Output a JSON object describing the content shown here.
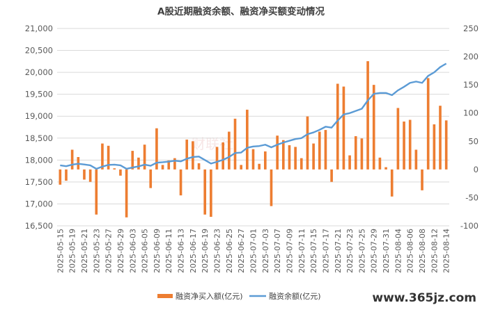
{
  "watermark": "www.365jz.com",
  "faint_watermark": "财联社",
  "colors": {
    "bar": "#ED7D31",
    "line": "#5B9BD5",
    "grid": "#D9D9D9",
    "text": "#595959",
    "title": "#404040"
  },
  "chart_data": {
    "type": "bar+line",
    "title": "A股近期融资余额、融资净买额变动情况",
    "xlabel": "",
    "ylabel_left": "",
    "ylabel_right": "",
    "ylim_left": [
      16500,
      21000
    ],
    "yticks_left": [
      "16,500",
      "17,000",
      "17,500",
      "18,000",
      "18,500",
      "19,000",
      "19,500",
      "20,000",
      "20,500",
      "21,000"
    ],
    "ylim_right": [
      -100,
      250
    ],
    "yticks_right": [
      "-100",
      "-50",
      "0",
      "50",
      "100",
      "150",
      "200",
      "250"
    ],
    "grid": true,
    "legend_position": "bottom",
    "categories": [
      "2025-05-15",
      "2025-05-16",
      "2025-05-19",
      "2025-05-20",
      "2025-05-21",
      "2025-05-22",
      "2025-05-23",
      "2025-05-26",
      "2025-05-27",
      "2025-05-28",
      "2025-05-29",
      "2025-05-30",
      "2025-06-03",
      "2025-06-04",
      "2025-06-05",
      "2025-06-06",
      "2025-06-09",
      "2025-06-10",
      "2025-06-11",
      "2025-06-12",
      "2025-06-13",
      "2025-06-16",
      "2025-06-17",
      "2025-06-18",
      "2025-06-19",
      "2025-06-20",
      "2025-06-23",
      "2025-06-24",
      "2025-06-25",
      "2025-06-26",
      "2025-06-27",
      "2025-06-30",
      "2025-07-01",
      "2025-07-02",
      "2025-07-03",
      "2025-07-04",
      "2025-07-07",
      "2025-07-08",
      "2025-07-09",
      "2025-07-10",
      "2025-07-11",
      "2025-07-14",
      "2025-07-15",
      "2025-07-16",
      "2025-07-17",
      "2025-07-18",
      "2025-07-21",
      "2025-07-22",
      "2025-07-23",
      "2025-07-24",
      "2025-07-25",
      "2025-07-28",
      "2025-07-29",
      "2025-07-30",
      "2025-07-31",
      "2025-08-01",
      "2025-08-04",
      "2025-08-05",
      "2025-08-06",
      "2025-08-07",
      "2025-08-08",
      "2025-08-11",
      "2025-08-12",
      "2025-08-13",
      "2025-08-14"
    ],
    "xtick_labels": [
      "2025-05-15",
      "2025-05-19",
      "2025-05-21",
      "2025-05-23",
      "2025-05-27",
      "2025-05-29",
      "2025-06-03",
      "2025-06-05",
      "2025-06-09",
      "2025-06-11",
      "2025-06-13",
      "2025-06-17",
      "2025-06-19",
      "2025-06-23",
      "2025-06-25",
      "2025-06-27",
      "2025-07-01",
      "2025-07-03",
      "2025-07-07",
      "2025-07-09",
      "2025-07-11",
      "2025-07-15",
      "2025-07-17",
      "2025-07-21",
      "2025-07-23",
      "2025-07-25",
      "2025-07-29",
      "2025-07-31",
      "2025-08-04",
      "2025-08-06",
      "2025-08-08",
      "2025-08-12",
      "2025-08-14"
    ],
    "series": [
      {
        "name": "融资净买入额(亿元)",
        "type": "bar",
        "axis": "right",
        "values": [
          -27,
          -20,
          35,
          22,
          -18,
          -22,
          -80,
          46,
          42,
          2,
          -11,
          -85,
          33,
          21,
          44,
          -33,
          73,
          8,
          16,
          20,
          -46,
          53,
          50,
          11,
          -80,
          -84,
          40,
          48,
          67,
          90,
          8,
          106,
          36,
          10,
          32,
          -65,
          60,
          52,
          43,
          40,
          20,
          94,
          46,
          67,
          70,
          -22,
          152,
          147,
          25,
          59,
          55,
          192,
          150,
          21,
          4,
          -48,
          109,
          85,
          88,
          35,
          -37,
          162,
          80,
          113,
          87
        ]
      },
      {
        "name": "融资余额(亿元)",
        "type": "line",
        "axis": "left",
        "values": [
          17880,
          17860,
          17895,
          17915,
          17900,
          17880,
          17800,
          17850,
          17890,
          17895,
          17880,
          17800,
          17830,
          17855,
          17895,
          17870,
          17940,
          17950,
          17965,
          17985,
          17970,
          18030,
          18070,
          18080,
          18000,
          17920,
          17960,
          18005,
          18070,
          18160,
          18170,
          18280,
          18310,
          18320,
          18350,
          18290,
          18350,
          18400,
          18440,
          18480,
          18500,
          18590,
          18630,
          18690,
          18760,
          18740,
          18900,
          19040,
          19070,
          19120,
          19170,
          19360,
          19510,
          19530,
          19530,
          19480,
          19590,
          19670,
          19760,
          19790,
          19760,
          19920,
          20000,
          20120,
          20200
        ]
      }
    ]
  }
}
